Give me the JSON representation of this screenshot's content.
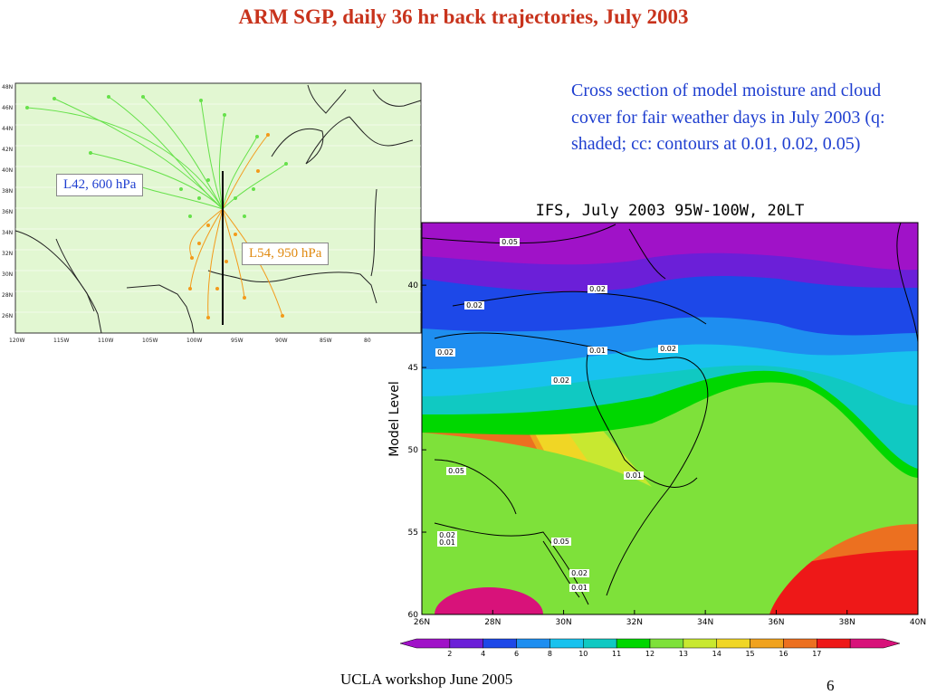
{
  "slide": {
    "title": "ARM SGP, daily 36 hr back trajectories, July 2003",
    "description": "Cross section of model moisture and cloud cover for fair weather days in July 2003 (q: shaded; cc: contours at 0.01, 0.02, 0.05)",
    "footer": "UCLA workshop June 2005",
    "page_number": "6"
  },
  "colors": {
    "title": "#c8331c",
    "description": "#1f3fd0",
    "map_background": "#e2f7d2",
    "traj_600": "#66e14a",
    "traj_950": "#f39a1a",
    "l42_label": "#1f3fd0",
    "l54_label": "#e08a10"
  },
  "chart_data": [
    {
      "type": "map",
      "labels": [
        "L42, 600 hPa",
        "L54, 950 hPa"
      ],
      "lat_ticks": [
        "46N",
        "44N",
        "42N",
        "40N",
        "38N",
        "36N",
        "34N",
        "32N",
        "30N",
        "28N",
        "26N",
        "48N"
      ],
      "lon_ticks": [
        "120W",
        "115W",
        "110W",
        "105W",
        "100W",
        "95W",
        "90W",
        "85W",
        "80"
      ],
      "series": [
        {
          "name": "L42, 600 hPa",
          "color": "#66e14a"
        },
        {
          "name": "L54, 950 hPa",
          "color": "#f39a1a"
        }
      ]
    },
    {
      "type": "heatmap",
      "title": "IFS, July 2003 95W-100W, 20LT",
      "ylabel": "Model Level",
      "xlabel": "",
      "x_ticks": [
        "26N",
        "28N",
        "30N",
        "32N",
        "34N",
        "36N",
        "38N",
        "40N"
      ],
      "x_values": [
        26,
        28,
        30,
        32,
        34,
        36,
        38,
        40
      ],
      "xlim": [
        26,
        40
      ],
      "y_ticks": [
        "40",
        "45",
        "50",
        "55",
        "60"
      ],
      "y_values": [
        40,
        45,
        50,
        55,
        60
      ],
      "ylim": [
        36.2,
        60
      ],
      "colorbar_ticks": [
        "2",
        "4",
        "6",
        "8",
        "10",
        "11",
        "12",
        "13",
        "14",
        "15",
        "16",
        "17"
      ],
      "colorbar_colors": [
        "#a012c8",
        "#6b1fd8",
        "#1d48e8",
        "#1e8ef0",
        "#18c2ee",
        "#10c9c2",
        "#00d700",
        "#7ee13a",
        "#c8e830",
        "#f0d625",
        "#f0a21e",
        "#ec7020",
        "#ee1818",
        "#d8127a"
      ],
      "contour_labels": [
        "0.05",
        "0.02",
        "0.02",
        "0.02",
        "0.01",
        "0.02",
        "0.02",
        "0.05",
        "0.01",
        "0.02",
        "0.01",
        "0.05",
        "0.02",
        "0.01"
      ]
    }
  ]
}
